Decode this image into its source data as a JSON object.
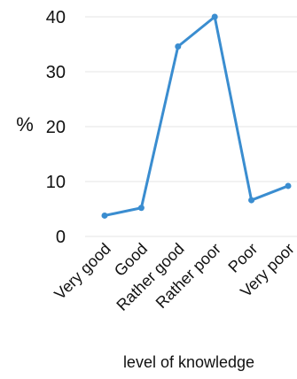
{
  "chart_data": {
    "type": "line",
    "categories": [
      "Very good",
      "Good",
      "Rather good",
      "Rather poor",
      "Poor",
      "Very poor"
    ],
    "series": [
      {
        "values": [
          3.8,
          5.2,
          34.6,
          40.0,
          6.6,
          9.2
        ]
      }
    ],
    "xlabel": "level of knowledge",
    "ylabel": "%",
    "ylim": [
      0,
      40
    ],
    "yticks": [
      0,
      10,
      20,
      30,
      40
    ],
    "grid": true,
    "colors": {
      "line": "#3a8dd0",
      "grid": "#e6e6e6"
    }
  }
}
